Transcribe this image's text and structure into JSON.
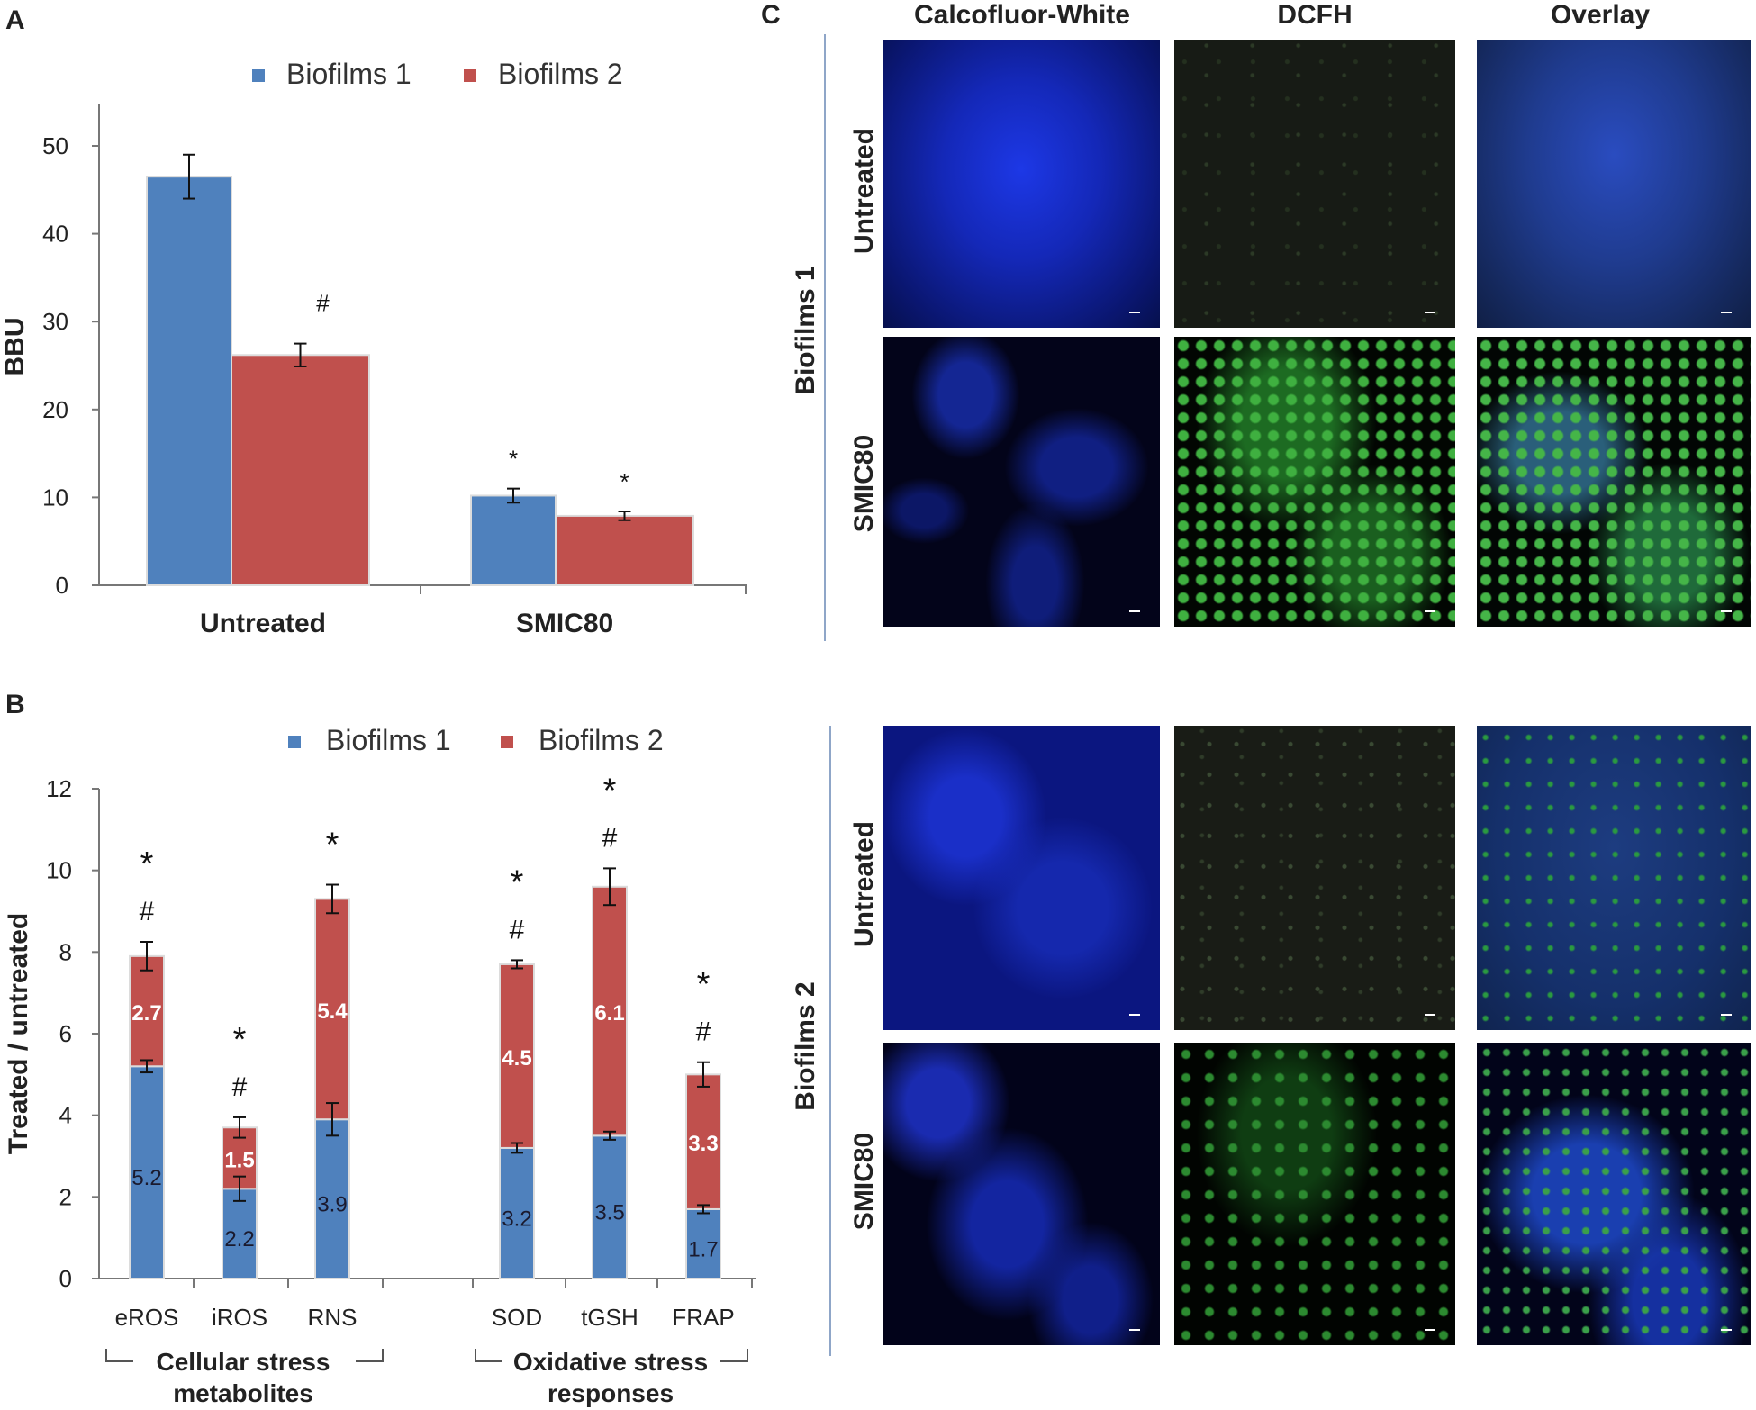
{
  "panel_labels": {
    "a": "A",
    "b": "B",
    "c": "C"
  },
  "colors": {
    "biofilms1": "#4f81bd",
    "biofilms2": "#c0504d"
  },
  "chart_data": [
    {
      "type": "bar",
      "ylabel": "BBU",
      "ylim": [
        0,
        50
      ],
      "yticks": [
        0,
        10,
        20,
        30,
        40,
        50
      ],
      "categories": [
        "Untreated",
        "SMIC80"
      ],
      "series": [
        {
          "name": "Biofilms 1",
          "values": [
            46.5,
            10.2
          ],
          "errors": [
            2.5,
            0.8
          ]
        },
        {
          "name": "Biofilms 2",
          "values": [
            26.2,
            7.9
          ],
          "errors": [
            1.3,
            0.5
          ]
        }
      ],
      "annotations": [
        {
          "category": "Untreated",
          "series": "Biofilms 2",
          "text": "#"
        },
        {
          "category": "SMIC80",
          "series": "Biofilms 1",
          "text": "*"
        },
        {
          "category": "SMIC80",
          "series": "Biofilms 2",
          "text": "*"
        }
      ],
      "legend": "top"
    },
    {
      "type": "bar",
      "stacked": true,
      "ylabel": "Treated / untreated",
      "ylim": [
        0,
        12
      ],
      "yticks": [
        0,
        2,
        4,
        6,
        8,
        10,
        12
      ],
      "categories": [
        "eROS",
        "iROS",
        "RNS",
        "SOD",
        "tGSH",
        "FRAP"
      ],
      "series": [
        {
          "name": "Biofilms 1",
          "values": [
            5.2,
            2.2,
            3.9,
            3.2,
            3.5,
            1.7
          ],
          "errors": [
            0.15,
            0.3,
            0.4,
            0.12,
            0.1,
            0.1
          ],
          "labels": [
            "5.2",
            "2.2",
            "3.9",
            "3.2",
            "3.5",
            "1.7"
          ]
        },
        {
          "name": "Biofilms 2",
          "values": [
            2.7,
            1.5,
            5.4,
            4.5,
            6.1,
            3.3
          ],
          "errors": [
            0.35,
            0.25,
            0.35,
            0.1,
            0.45,
            0.3
          ],
          "labels": [
            "2.7",
            "1.5",
            "5.4",
            "4.5",
            "6.1",
            "3.3"
          ]
        }
      ],
      "markers": [
        {
          "category": "eROS",
          "hash": "#",
          "star": "*"
        },
        {
          "category": "iROS",
          "hash": "#",
          "star": "*"
        },
        {
          "category": "RNS",
          "hash": "",
          "star": "*"
        },
        {
          "category": "SOD",
          "hash": "#",
          "star": "*"
        },
        {
          "category": "tGSH",
          "hash": "#",
          "star": "*"
        },
        {
          "category": "FRAP",
          "hash": "#",
          "star": "*"
        }
      ],
      "groups": [
        {
          "label_line1": "Cellular stress",
          "label_line2": "metabolites",
          "categories": [
            "eROS",
            "iROS",
            "RNS"
          ]
        },
        {
          "label_line1": "Oxidative stress",
          "label_line2": "responses",
          "categories": [
            "SOD",
            "tGSH",
            "FRAP"
          ]
        }
      ],
      "legend": "top"
    }
  ],
  "panel_c": {
    "column_titles": [
      "Calcofluor-White",
      "DCFH",
      "Overlay"
    ],
    "groups": [
      {
        "label": "Biofilms 1",
        "rows": [
          "Untreated",
          "SMIC80"
        ]
      },
      {
        "label": "Biofilms 2",
        "rows": [
          "Untreated",
          "SMIC80"
        ]
      }
    ]
  }
}
